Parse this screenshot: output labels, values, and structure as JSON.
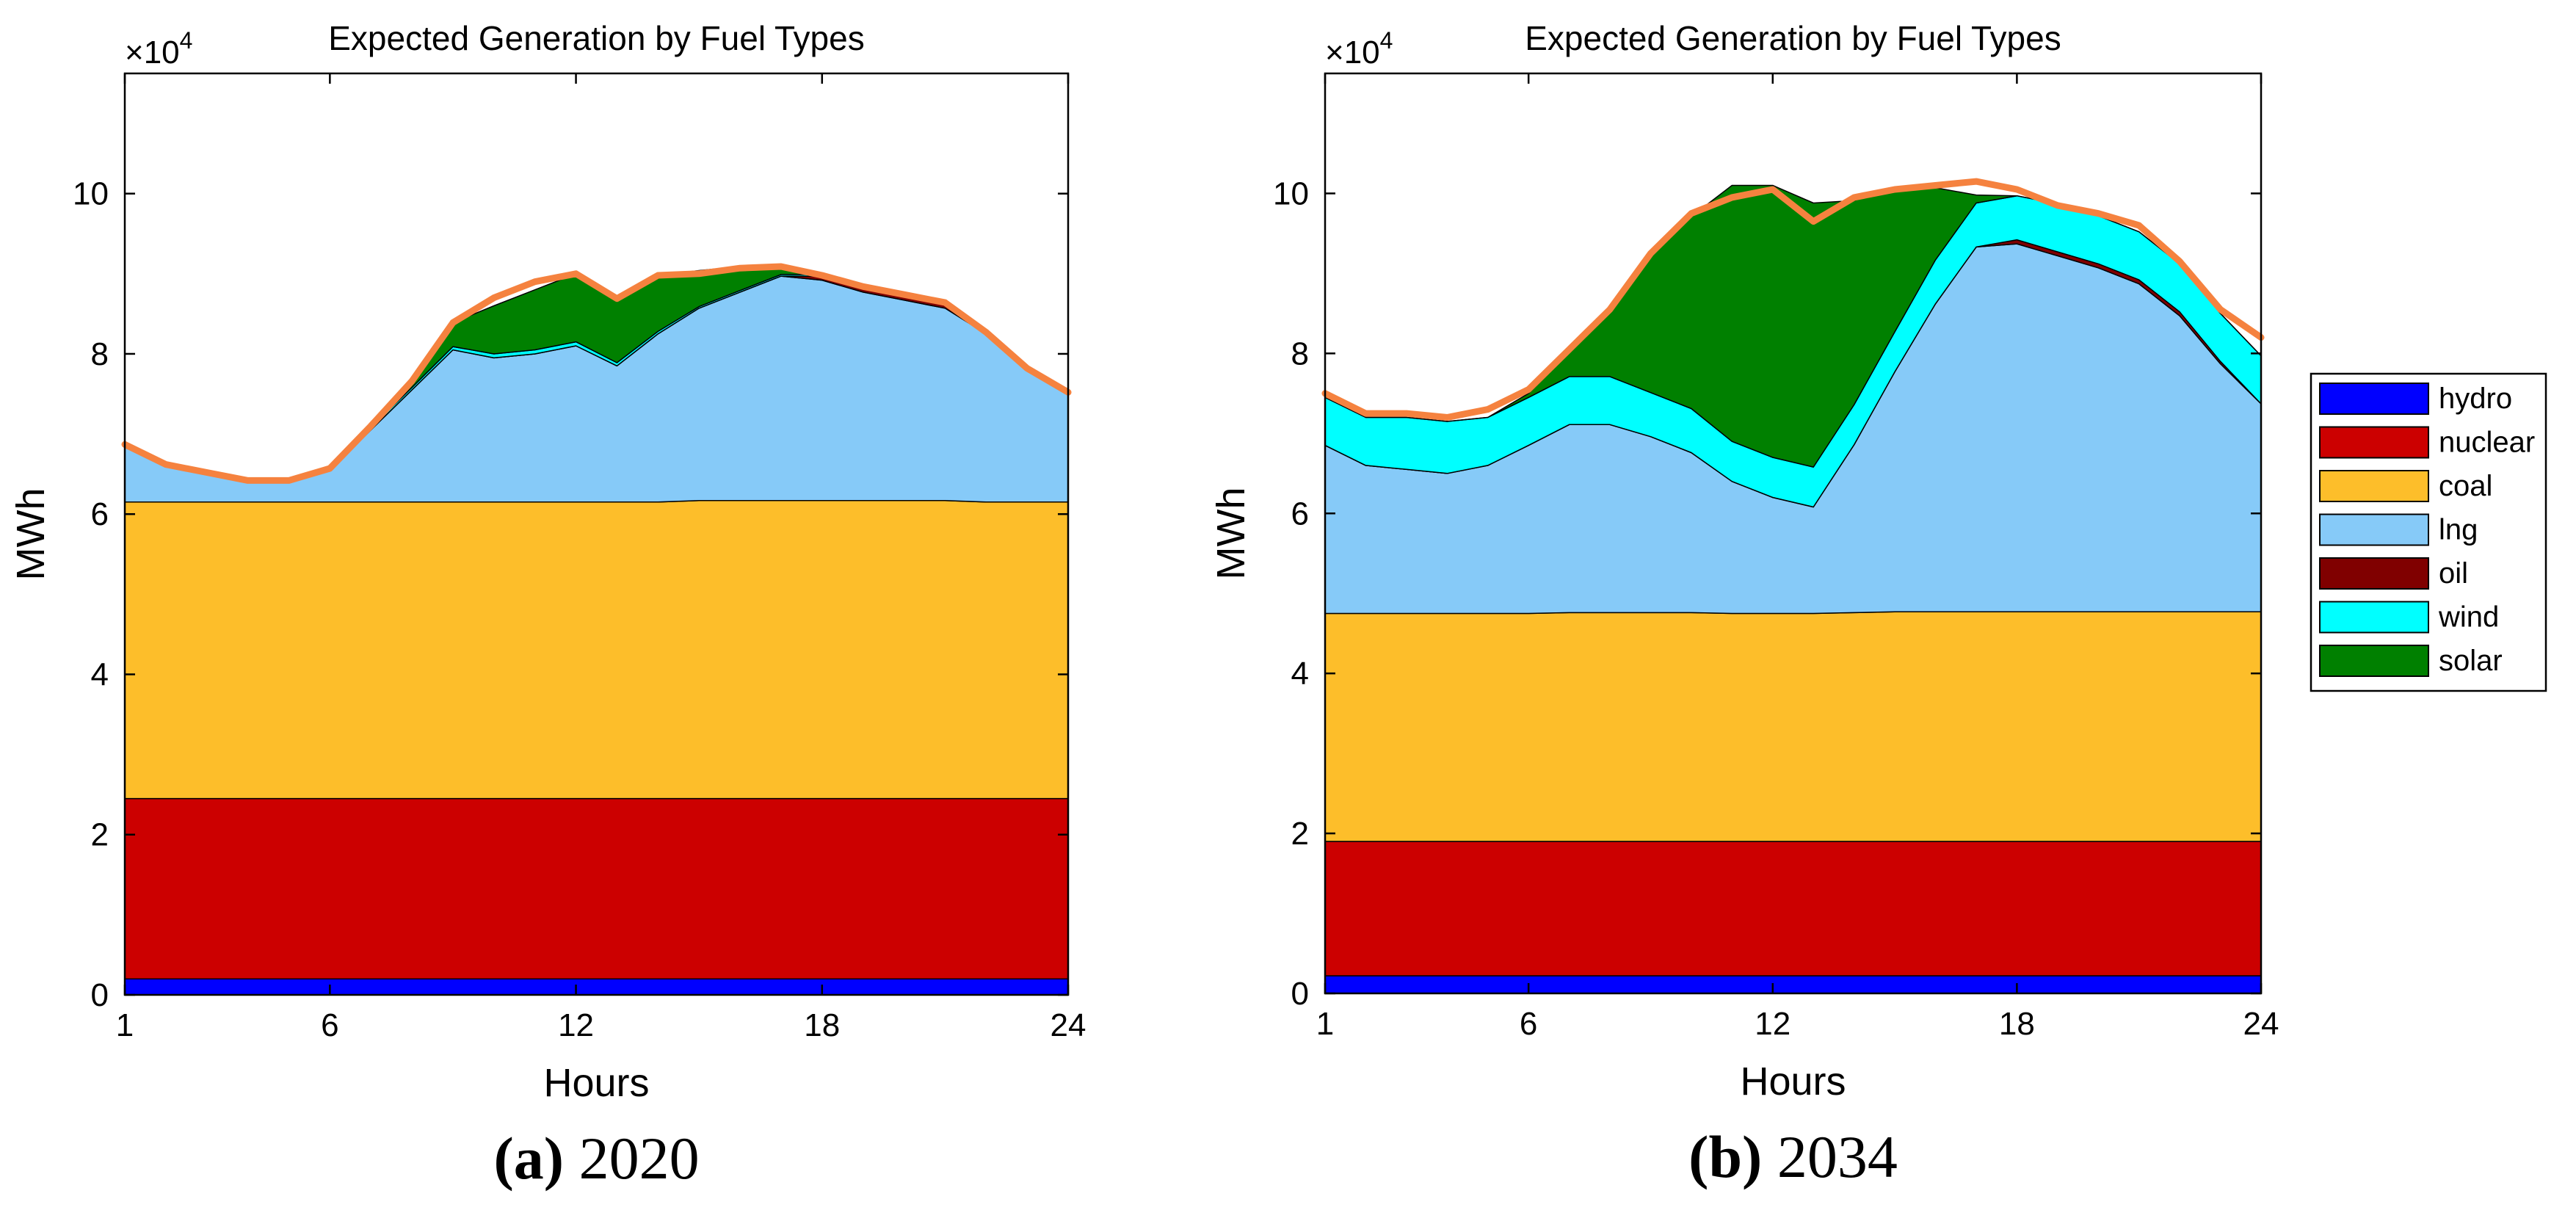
{
  "figure": {
    "legend": [
      {
        "label": "hydro",
        "color": "#0000FF"
      },
      {
        "label": "nuclear",
        "color": "#CC0000"
      },
      {
        "label": "coal",
        "color": "#FDBE2A"
      },
      {
        "label": "lng",
        "color": "#86CAF8"
      },
      {
        "label": "oil",
        "color": "#800000"
      },
      {
        "label": "wind",
        "color": "#00FFFF"
      },
      {
        "label": "solar",
        "color": "#008000"
      }
    ],
    "total_line_color": "#F5823F"
  },
  "chart_data": [
    {
      "type": "area",
      "stacked": true,
      "title": "Expected Generation by Fuel Types",
      "xlabel": "Hours",
      "ylabel": "MWh",
      "exponent_label": "×10",
      "exponent_power": "4",
      "caption_letter": "(a)",
      "caption_year": "2020",
      "xlim": [
        1,
        24
      ],
      "ylim": [
        0,
        11.5
      ],
      "xticks": [
        "1",
        "6",
        "12",
        "18",
        "24"
      ],
      "yticks": [
        "0",
        "2",
        "4",
        "6",
        "8",
        "10"
      ],
      "x": [
        1,
        2,
        3,
        4,
        5,
        6,
        7,
        8,
        9,
        10,
        11,
        12,
        13,
        14,
        15,
        16,
        17,
        18,
        19,
        20,
        21,
        22,
        23,
        24
      ],
      "series": [
        {
          "name": "hydro",
          "values": [
            0.2,
            0.2,
            0.2,
            0.2,
            0.2,
            0.2,
            0.2,
            0.2,
            0.2,
            0.2,
            0.2,
            0.2,
            0.2,
            0.2,
            0.2,
            0.2,
            0.2,
            0.2,
            0.2,
            0.2,
            0.2,
            0.2,
            0.2,
            0.2
          ]
        },
        {
          "name": "nuclear",
          "values": [
            2.25,
            2.25,
            2.25,
            2.25,
            2.25,
            2.25,
            2.25,
            2.25,
            2.25,
            2.25,
            2.25,
            2.25,
            2.25,
            2.25,
            2.25,
            2.25,
            2.25,
            2.25,
            2.25,
            2.25,
            2.25,
            2.25,
            2.25,
            2.25
          ]
        },
        {
          "name": "coal",
          "values": [
            3.7,
            3.7,
            3.7,
            3.7,
            3.7,
            3.7,
            3.7,
            3.7,
            3.7,
            3.7,
            3.7,
            3.7,
            3.7,
            3.7,
            3.72,
            3.72,
            3.72,
            3.72,
            3.72,
            3.72,
            3.72,
            3.7,
            3.7,
            3.7
          ]
        },
        {
          "name": "lng",
          "values": [
            0.7,
            0.45,
            0.35,
            0.25,
            0.25,
            0.4,
            0.9,
            1.4,
            1.9,
            1.8,
            1.85,
            1.95,
            1.7,
            2.1,
            2.4,
            2.6,
            2.8,
            2.75,
            2.6,
            2.5,
            2.4,
            2.1,
            1.65,
            1.35
          ]
        },
        {
          "name": "oil",
          "values": [
            0,
            0,
            0,
            0,
            0,
            0,
            0,
            0,
            0,
            0,
            0,
            0,
            0,
            0,
            0,
            0,
            0,
            0.05,
            0.05,
            0.05,
            0.05,
            0,
            0,
            0
          ]
        },
        {
          "name": "wind",
          "values": [
            0.02,
            0.02,
            0.02,
            0.02,
            0.02,
            0.02,
            0.03,
            0.03,
            0.04,
            0.05,
            0.05,
            0.05,
            0.04,
            0.03,
            0.02,
            0.02,
            0.02,
            0.02,
            0.02,
            0.02,
            0.02,
            0.02,
            0.02,
            0.02
          ]
        },
        {
          "name": "solar",
          "values": [
            0,
            0,
            0,
            0,
            0,
            0,
            0.02,
            0.08,
            0.3,
            0.6,
            0.75,
            0.85,
            0.8,
            0.7,
            0.45,
            0.3,
            0.1,
            0.01,
            0,
            0,
            0,
            0,
            0,
            0
          ]
        }
      ],
      "total": [
        6.87,
        6.62,
        6.52,
        6.42,
        6.42,
        6.57,
        7.1,
        7.66,
        8.39,
        8.7,
        8.9,
        9.0,
        8.69,
        8.98,
        9.0,
        9.07,
        9.09,
        8.98,
        8.84,
        8.74,
        8.64,
        8.27,
        7.82,
        7.52
      ]
    },
    {
      "type": "area",
      "stacked": true,
      "title": "Expected Generation by Fuel Types",
      "xlabel": "Hours",
      "ylabel": "MWh",
      "exponent_label": "×10",
      "exponent_power": "4",
      "caption_letter": "(b)",
      "caption_year": "2034",
      "xlim": [
        1,
        24
      ],
      "ylim": [
        0,
        11.5
      ],
      "xticks": [
        "1",
        "6",
        "12",
        "18",
        "24"
      ],
      "yticks": [
        "0",
        "2",
        "4",
        "6",
        "8",
        "10"
      ],
      "x": [
        1,
        2,
        3,
        4,
        5,
        6,
        7,
        8,
        9,
        10,
        11,
        12,
        13,
        14,
        15,
        16,
        17,
        18,
        19,
        20,
        21,
        22,
        23,
        24
      ],
      "series": [
        {
          "name": "hydro",
          "values": [
            0.22,
            0.22,
            0.22,
            0.22,
            0.22,
            0.22,
            0.22,
            0.22,
            0.22,
            0.22,
            0.22,
            0.22,
            0.22,
            0.22,
            0.22,
            0.22,
            0.22,
            0.22,
            0.22,
            0.22,
            0.22,
            0.22,
            0.22,
            0.22
          ]
        },
        {
          "name": "nuclear",
          "values": [
            1.68,
            1.68,
            1.68,
            1.68,
            1.68,
            1.68,
            1.68,
            1.68,
            1.68,
            1.68,
            1.68,
            1.68,
            1.68,
            1.68,
            1.68,
            1.68,
            1.68,
            1.68,
            1.68,
            1.68,
            1.68,
            1.68,
            1.68,
            1.68
          ]
        },
        {
          "name": "coal",
          "values": [
            2.85,
            2.85,
            2.85,
            2.85,
            2.85,
            2.85,
            2.86,
            2.86,
            2.86,
            2.86,
            2.85,
            2.85,
            2.85,
            2.86,
            2.87,
            2.87,
            2.87,
            2.87,
            2.87,
            2.87,
            2.87,
            2.87,
            2.87,
            2.87
          ]
        },
        {
          "name": "lng",
          "values": [
            2.1,
            1.85,
            1.8,
            1.75,
            1.85,
            2.1,
            2.35,
            2.35,
            2.2,
            2.0,
            1.65,
            1.45,
            1.33,
            2.1,
            3.0,
            3.85,
            4.56,
            4.6,
            4.45,
            4.3,
            4.1,
            3.7,
            3.1,
            2.6
          ]
        },
        {
          "name": "oil",
          "values": [
            0,
            0,
            0,
            0,
            0,
            0,
            0,
            0,
            0,
            0,
            0,
            0,
            0,
            0,
            0,
            0,
            0,
            0.05,
            0.05,
            0.05,
            0.05,
            0.05,
            0.03,
            0
          ]
        },
        {
          "name": "wind",
          "values": [
            0.6,
            0.6,
            0.65,
            0.65,
            0.6,
            0.6,
            0.6,
            0.6,
            0.55,
            0.55,
            0.5,
            0.5,
            0.5,
            0.5,
            0.5,
            0.55,
            0.55,
            0.55,
            0.6,
            0.6,
            0.6,
            0.6,
            0.6,
            0.6
          ]
        },
        {
          "name": "solar",
          "values": [
            0,
            0,
            0,
            0,
            0,
            0.05,
            0.3,
            0.8,
            1.7,
            2.4,
            3.2,
            3.4,
            3.3,
            2.55,
            1.8,
            0.9,
            0.1,
            0,
            0,
            0,
            0,
            0,
            0,
            0
          ]
        }
      ],
      "total": [
        7.5,
        7.25,
        7.25,
        7.2,
        7.3,
        7.55,
        8.05,
        8.55,
        9.25,
        9.75,
        9.95,
        10.05,
        9.65,
        9.95,
        10.05,
        10.1,
        10.15,
        10.05,
        9.85,
        9.75,
        9.6,
        9.15,
        8.55,
        8.2
      ]
    }
  ]
}
